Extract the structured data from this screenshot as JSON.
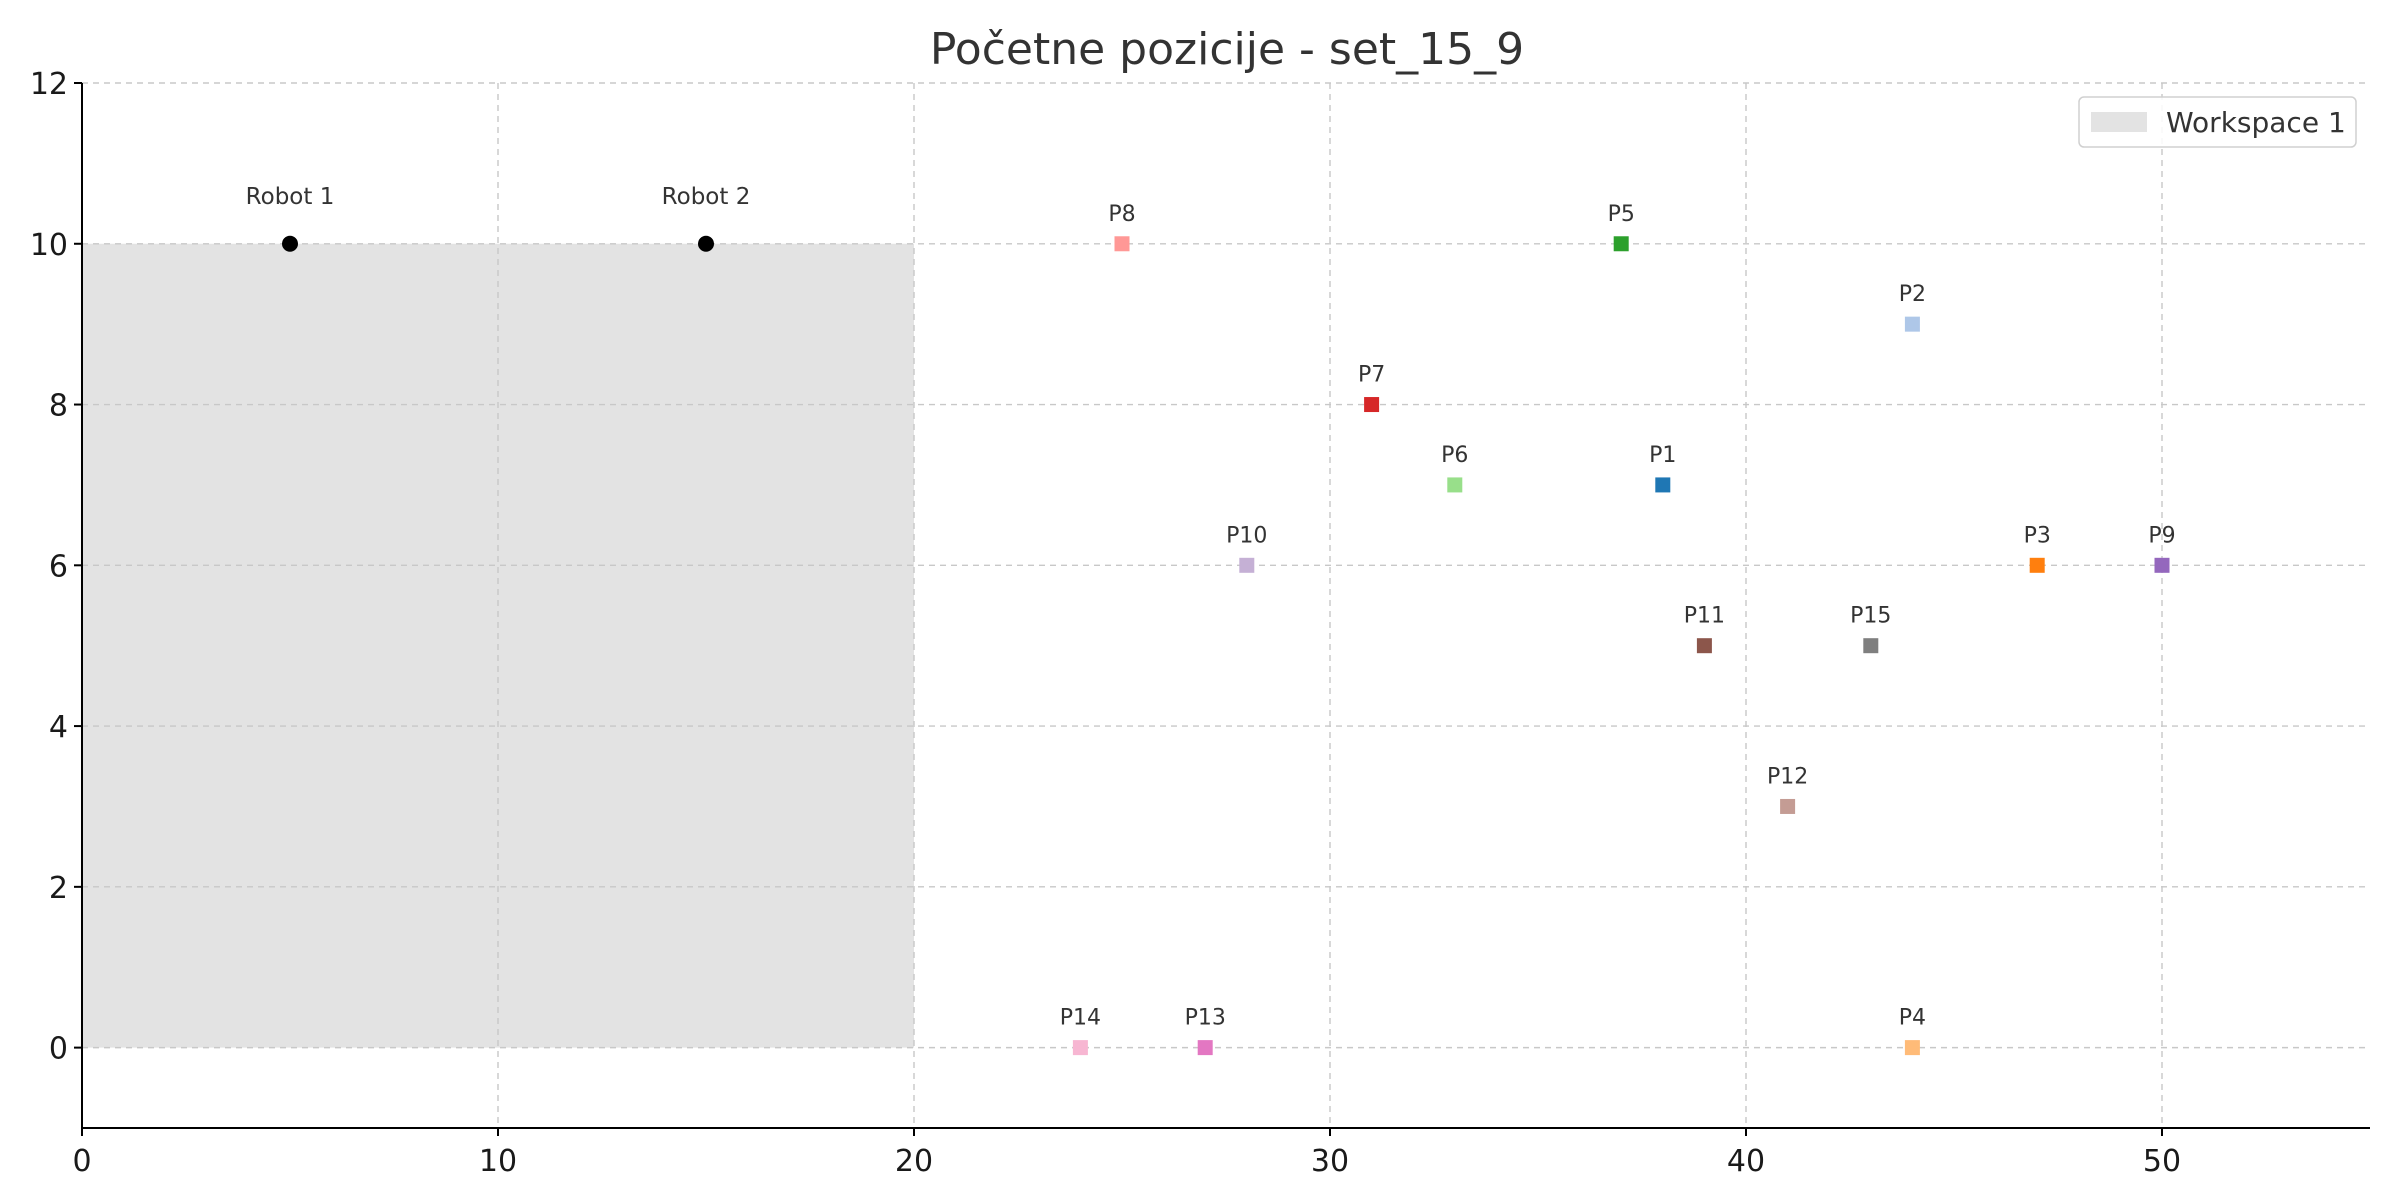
{
  "chart_data": {
    "type": "scatter",
    "title": "Početne pozicije - set_15_9",
    "xlabel": "",
    "ylabel": "",
    "xlim": [
      0,
      55
    ],
    "ylim": [
      -1,
      12
    ],
    "xticks": [
      0,
      10,
      20,
      30,
      40,
      50
    ],
    "yticks": [
      0,
      2,
      4,
      6,
      8,
      10,
      12
    ],
    "grid": true,
    "legend": {
      "placement": "top-right",
      "entries": [
        {
          "label": "Workspace 1",
          "color": "#e3e3e3"
        }
      ]
    },
    "workspaces": [
      {
        "name": "Workspace 1",
        "x_range": [
          0,
          20
        ],
        "y_range": [
          0,
          10
        ],
        "color": "#e3e3e3"
      }
    ],
    "robots": [
      {
        "label": "Robot 1",
        "x": 5,
        "y": 10,
        "color": "#000000"
      },
      {
        "label": "Robot 2",
        "x": 15,
        "y": 10,
        "color": "#000000"
      }
    ],
    "points": [
      {
        "label": "P1",
        "x": 38,
        "y": 7,
        "color": "#1f77b4"
      },
      {
        "label": "P2",
        "x": 44,
        "y": 9,
        "color": "#aec7e8"
      },
      {
        "label": "P3",
        "x": 47,
        "y": 6,
        "color": "#ff7f0e"
      },
      {
        "label": "P4",
        "x": 44,
        "y": 0,
        "color": "#ffbb78"
      },
      {
        "label": "P5",
        "x": 37,
        "y": 10,
        "color": "#2ca02c"
      },
      {
        "label": "P6",
        "x": 33,
        "y": 7,
        "color": "#98df8a"
      },
      {
        "label": "P7",
        "x": 31,
        "y": 8,
        "color": "#d62728"
      },
      {
        "label": "P8",
        "x": 25,
        "y": 10,
        "color": "#ff9896"
      },
      {
        "label": "P9",
        "x": 50,
        "y": 6,
        "color": "#9467bd"
      },
      {
        "label": "P10",
        "x": 28,
        "y": 6,
        "color": "#c5b0d5"
      },
      {
        "label": "P11",
        "x": 39,
        "y": 5,
        "color": "#8c564b"
      },
      {
        "label": "P12",
        "x": 41,
        "y": 3,
        "color": "#c49c94"
      },
      {
        "label": "P13",
        "x": 27,
        "y": 0,
        "color": "#e377c2"
      },
      {
        "label": "P14",
        "x": 24,
        "y": 0,
        "color": "#f7b6d2"
      },
      {
        "label": "P15",
        "x": 43,
        "y": 5,
        "color": "#7f7f7f"
      }
    ]
  }
}
